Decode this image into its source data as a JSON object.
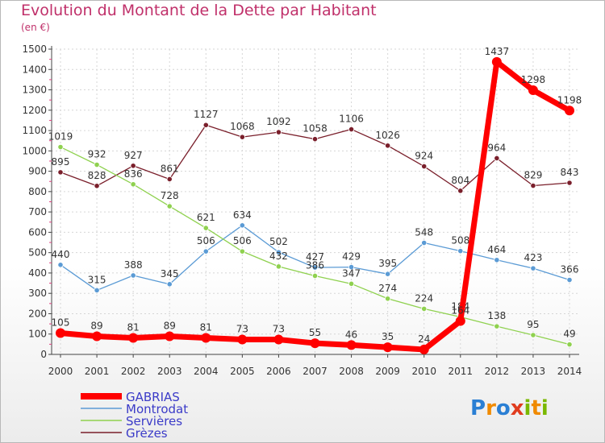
{
  "chart_data": {
    "type": "line",
    "title": "Evolution du Montant de la Dette par Habitant",
    "subtitle": "(en €)",
    "xlabel": "",
    "ylabel": "",
    "ylim": [
      0,
      1500
    ],
    "yticks": [
      0,
      100,
      200,
      300,
      400,
      500,
      600,
      700,
      800,
      900,
      1000,
      1100,
      1200,
      1300,
      1400,
      1500
    ],
    "x": [
      2000,
      2001,
      2002,
      2003,
      2004,
      2005,
      2006,
      2007,
      2008,
      2009,
      2010,
      2011,
      2012,
      2013,
      2014
    ],
    "grid": true,
    "legend_position": "bottom-left",
    "series": [
      {
        "name": "Grèzes",
        "color": "#7a1f2b",
        "values": [
          895,
          828,
          927,
          861,
          1127,
          1068,
          1092,
          1058,
          1106,
          1026,
          924,
          804,
          964,
          829,
          843
        ]
      },
      {
        "name": "Montrodat",
        "color": "#5b9bd5",
        "values": [
          440,
          315,
          388,
          345,
          506,
          634,
          502,
          427,
          429,
          395,
          548,
          508,
          464,
          423,
          366
        ]
      },
      {
        "name": "Servières",
        "color": "#8fd14f",
        "values": [
          1019,
          932,
          836,
          728,
          621,
          506,
          432,
          386,
          347,
          274,
          224,
          184,
          138,
          95,
          49
        ]
      },
      {
        "name": "GABRIAS",
        "color": "#ff0000",
        "values": [
          105,
          89,
          81,
          89,
          81,
          73,
          73,
          55,
          46,
          35,
          24,
          164,
          1437,
          1298,
          1198
        ]
      }
    ]
  },
  "legend": [
    {
      "name": "GABRIAS",
      "color": "#ff0000"
    },
    {
      "name": "Montrodat",
      "color": "#5b9bd5"
    },
    {
      "name": "Servières",
      "color": "#8fd14f"
    },
    {
      "name": "Grèzes",
      "color": "#7a1f2b"
    }
  ],
  "legend_text_color": "#3b3bc8",
  "brand": {
    "letters": [
      "P",
      "r",
      "o",
      "x",
      "i",
      "t",
      "i"
    ],
    "colors": [
      "#2a7fd4",
      "#f08a00",
      "#2a7fd4",
      "#e03c1e",
      "#7ab800",
      "#f08a00",
      "#7ab800"
    ]
  }
}
